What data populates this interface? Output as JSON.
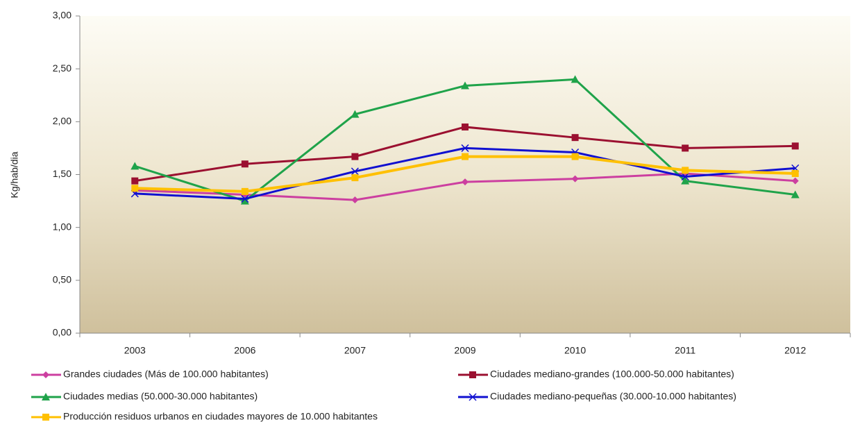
{
  "chart_data": {
    "type": "line",
    "y_label": "Kg/hab/dia",
    "categories": [
      "2003",
      "2006",
      "2007",
      "2009",
      "2010",
      "2011",
      "2012"
    ],
    "ylim": [
      0,
      3
    ],
    "yticks": [
      {
        "value": 0,
        "label": "0,00"
      },
      {
        "value": 0.5,
        "label": "0,50"
      },
      {
        "value": 1,
        "label": "1,00"
      },
      {
        "value": 1.5,
        "label": "1,50"
      },
      {
        "value": 2,
        "label": "2,00"
      },
      {
        "value": 2.5,
        "label": "2,50"
      },
      {
        "value": 3,
        "label": "3,00"
      }
    ],
    "grid": false,
    "series": [
      {
        "name": "Grandes ciudades (Más de 100.000 habitantes)",
        "color": "#cc3fa0",
        "marker": "diamond",
        "values": [
          1.35,
          1.31,
          1.26,
          1.43,
          1.46,
          1.51,
          1.44
        ]
      },
      {
        "name": "Ciudades mediano-grandes (100.000-50.000 habitantes)",
        "color": "#9b1030",
        "marker": "square",
        "values": [
          1.44,
          1.6,
          1.67,
          1.95,
          1.85,
          1.75,
          1.77
        ]
      },
      {
        "name": "Ciudades medias (50.000-30.000 habitantes)",
        "color": "#1fa34a",
        "marker": "triangle",
        "values": [
          1.58,
          1.25,
          2.07,
          2.34,
          2.4,
          1.44,
          1.31
        ]
      },
      {
        "name": "Ciudades mediano-pequeñas (30.000-10.000 habitantes)",
        "color": "#1010d0",
        "marker": "x",
        "values": [
          1.32,
          1.27,
          1.53,
          1.75,
          1.71,
          1.48,
          1.56
        ]
      },
      {
        "name": "Producción residuos urbanos en ciudades mayores de 10.000 habitantes",
        "color": "#ffc000",
        "marker": "square",
        "values": [
          1.37,
          1.34,
          1.47,
          1.67,
          1.67,
          1.54,
          1.51
        ]
      }
    ]
  }
}
